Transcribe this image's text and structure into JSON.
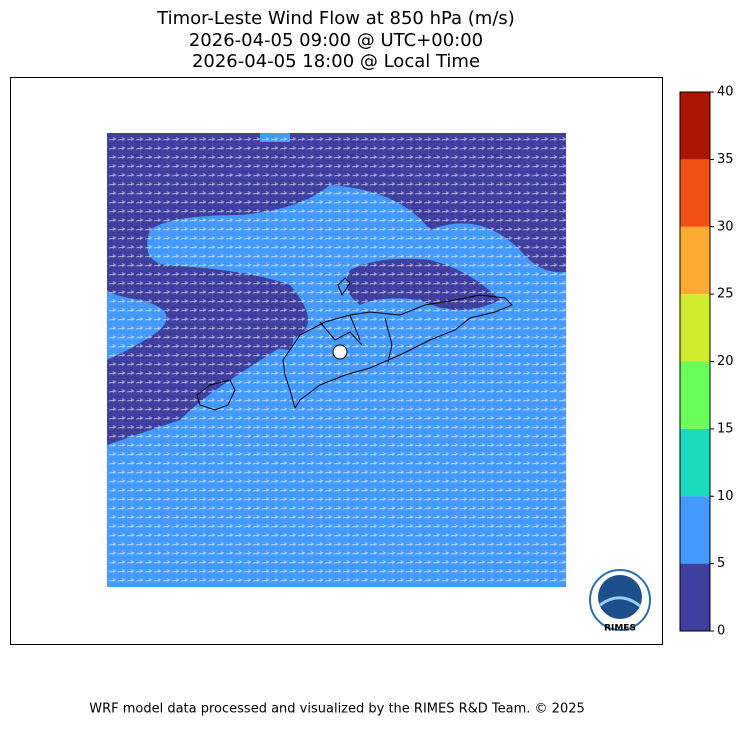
{
  "title_lines": [
    "Timor-Leste Wind Flow at 850 hPa (m/s)",
    "2026-04-05 09:00 @ UTC+00:00",
    "2026-04-05 18:00 @ Local Time"
  ],
  "colorbar": {
    "lim": [
      0,
      40
    ],
    "ticks": [
      0,
      5,
      10,
      15,
      20,
      25,
      30,
      35,
      40
    ],
    "colors": [
      "#3f3f9f",
      "#4499ff",
      "#1adcbc",
      "#6bff5a",
      "#d0ec2f",
      "#ffab30",
      "#f25012",
      "#ab1502"
    ]
  },
  "logo_text": "RIMES",
  "footer": "WRF model data processed and visualized by the RIMES R&D Team. © 2025"
}
